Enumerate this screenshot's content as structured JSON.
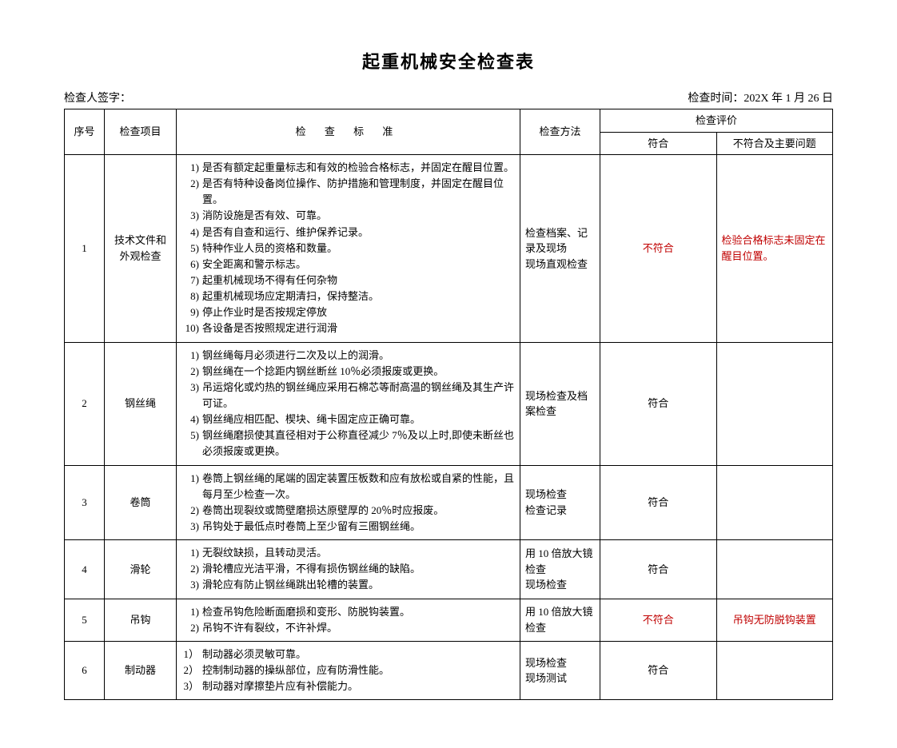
{
  "title": "起重机械安全检查表",
  "inspector_label": "检查人签字：",
  "time_label": "检查时间：",
  "time_value": "202X 年 1 月 26 日",
  "headers": {
    "seq": "序号",
    "item": "检查项目",
    "standard": "检 查 标 准",
    "method": "检查方法",
    "evaluation": "检查评价",
    "comply": "符合",
    "issue": "不符合及主要问题"
  },
  "rows": [
    {
      "seq": "1",
      "item": "技术文件和外观检查",
      "standards": [
        "是否有额定起重量标志和有效的检验合格标志，并固定在醒目位置。",
        "是否有特种设备岗位操作、防护措施和管理制度，并固定在醒目位置。",
        "消防设施是否有效、可靠。",
        "是否有自查和运行、维护保养记录。",
        "特种作业人员的资格和数量。",
        "安全距离和警示标志。",
        "起重机械现场不得有任何杂物",
        "起重机械现场应定期清扫，保持整洁。",
        "停止作业时是否按规定停放",
        "各设备是否按照规定进行润滑"
      ],
      "method": "检查档案、记录及现场\n现场直观检查",
      "comply": "不符合",
      "comply_class": "noncomply",
      "issue": "检验合格标志未固定在醒目位置。",
      "issue_class": "noncomply",
      "list_style": "ol-paren"
    },
    {
      "seq": "2",
      "item": "钢丝绳",
      "standards": [
        "钢丝绳每月必须进行二次及以上的润滑。",
        "钢丝绳在一个捻距内钢丝断丝 10％必须报废或更换。",
        "吊运熔化或灼热的钢丝绳应采用石棉芯等耐高温的钢丝绳及其生产许可证。",
        "钢丝绳应相匹配、楔块、绳卡固定应正确可靠。",
        "钢丝绳磨损使其直径相对于公称直径减少 7％及以上时,即使未断丝也必须报废或更换。"
      ],
      "method": "现场检查及档案检查",
      "comply": "符合",
      "comply_class": "",
      "issue": "",
      "issue_class": "",
      "list_style": "ol-paren"
    },
    {
      "seq": "3",
      "item": "卷筒",
      "standards": [
        "卷筒上钢丝绳的尾端的固定装置压板数和应有放松或自紧的性能，且每月至少检查一次。",
        "卷筒出现裂纹或筒壁磨损达原壁厚的 20％时应报废。",
        "吊钩处于最低点时卷筒上至少留有三圈钢丝绳。"
      ],
      "method": "现场检查\n检查记录",
      "comply": "符合",
      "comply_class": "",
      "issue": "",
      "issue_class": "",
      "list_style": "ol-paren"
    },
    {
      "seq": "4",
      "item": "滑轮",
      "standards": [
        "无裂纹缺损，且转动灵活。",
        "滑轮槽应光洁平滑，不得有损伤钢丝绳的缺陷。",
        "滑轮应有防止钢丝绳跳出轮槽的装置。"
      ],
      "method": "用 10 倍放大镜检查\n现场检查",
      "comply": "符合",
      "comply_class": "",
      "issue": "",
      "issue_class": "",
      "list_style": "ol-paren"
    },
    {
      "seq": "5",
      "item": "吊钩",
      "standards": [
        "检查吊钩危险断面磨损和变形、防脱钩装置。",
        "吊钩不许有裂纹，不许补焊。"
      ],
      "method": "用 10 倍放大镜检查",
      "comply": "不符合",
      "comply_class": "noncomply",
      "issue": "吊钩无防脱钩装置",
      "issue_class": "noncomply",
      "list_style": "ol-paren"
    },
    {
      "seq": "6",
      "item": "制动器",
      "standards": [
        "制动器必须灵敏可靠。",
        "控制制动器的操纵部位，应有防滑性能。",
        "制动器对摩擦垫片应有补偿能力。"
      ],
      "method": "现场检查\n现场测试",
      "comply": "符合",
      "comply_class": "",
      "issue": "",
      "issue_class": "",
      "list_style": "ol-brack"
    }
  ]
}
